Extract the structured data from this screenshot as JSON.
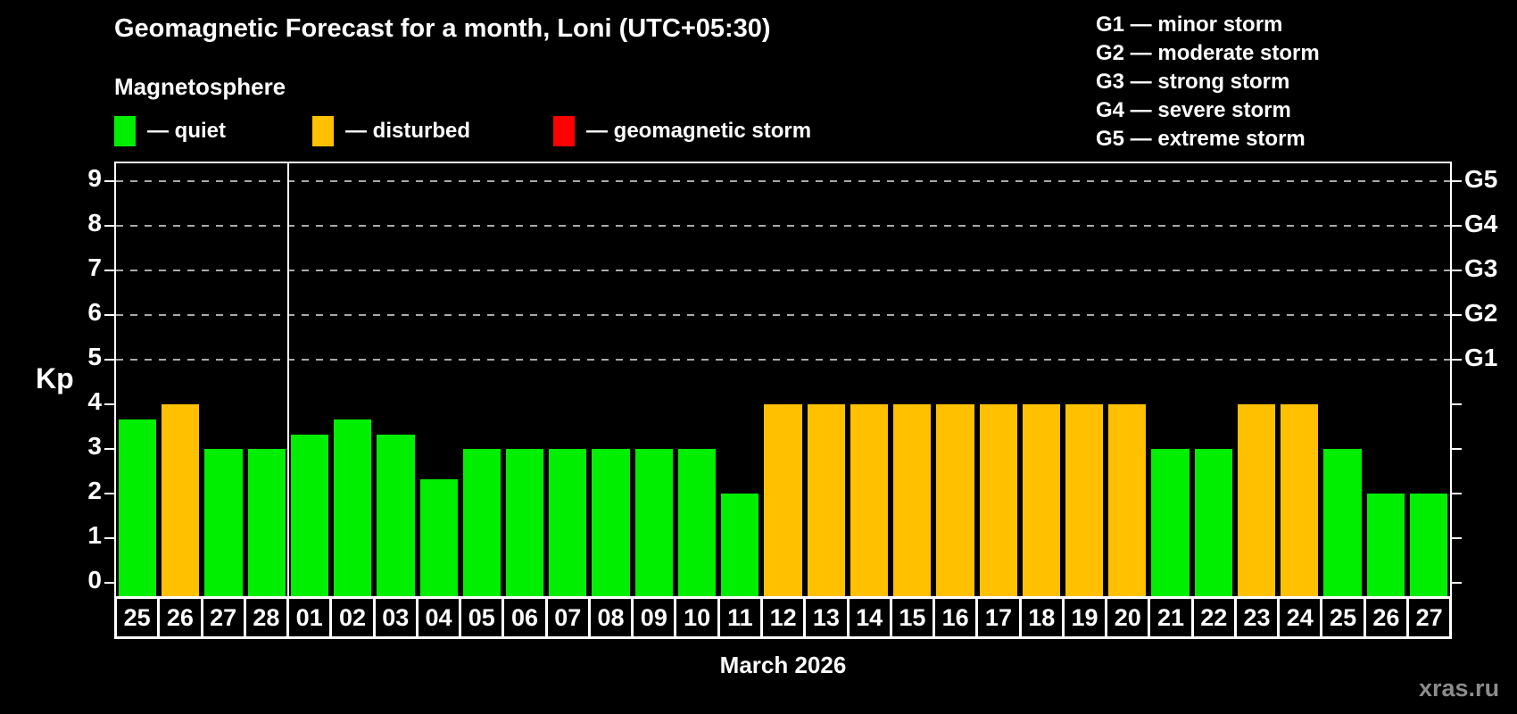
{
  "title": "Geomagnetic Forecast for a month, Loni (UTC+05:30)",
  "subtitle": "Magnetosphere",
  "legend": {
    "items": [
      {
        "label": "— quiet",
        "state": "quiet",
        "color": "#00ee00"
      },
      {
        "label": "— disturbed",
        "state": "disturbed",
        "color": "#ffc000"
      },
      {
        "label": "— geomagnetic storm",
        "state": "storm",
        "color": "#ff0000"
      }
    ]
  },
  "storm_legend": {
    "items": [
      "G1 — minor storm",
      "G2 — moderate storm",
      "G3 — strong storm",
      "G4 — severe storm",
      "G5 — extreme storm"
    ]
  },
  "watermark": "xras.ru",
  "chart_data": {
    "type": "bar",
    "title": "Geomagnetic Forecast for a month, Loni (UTC+05:30)",
    "ylabel": "Kp",
    "xlabel": "March 2026",
    "categories": [
      "25",
      "26",
      "27",
      "28",
      "01",
      "02",
      "03",
      "04",
      "05",
      "06",
      "07",
      "08",
      "09",
      "10",
      "11",
      "12",
      "13",
      "14",
      "15",
      "16",
      "17",
      "18",
      "19",
      "20",
      "21",
      "22",
      "23",
      "24",
      "25",
      "26",
      "27"
    ],
    "values": [
      3.67,
      4,
      3,
      3,
      3.33,
      3.67,
      3.33,
      2.33,
      3,
      3,
      3,
      3,
      3,
      3,
      2,
      4,
      4,
      4,
      4,
      4,
      4,
      4,
      4,
      4,
      3,
      3,
      4,
      4,
      3,
      2,
      2
    ],
    "states": [
      "quiet",
      "disturbed",
      "quiet",
      "quiet",
      "quiet",
      "quiet",
      "quiet",
      "quiet",
      "quiet",
      "quiet",
      "quiet",
      "quiet",
      "quiet",
      "quiet",
      "quiet",
      "disturbed",
      "disturbed",
      "disturbed",
      "disturbed",
      "disturbed",
      "disturbed",
      "disturbed",
      "disturbed",
      "disturbed",
      "quiet",
      "quiet",
      "disturbed",
      "disturbed",
      "quiet",
      "quiet",
      "quiet"
    ],
    "state_colors": {
      "quiet": "#00ee00",
      "disturbed": "#ffc000",
      "storm": "#ff0000"
    },
    "ylim": [
      0,
      9
    ],
    "yticks": [
      0,
      1,
      2,
      3,
      4,
      5,
      6,
      7,
      8,
      9
    ],
    "gridlines_at": [
      5,
      6,
      7,
      8,
      9
    ],
    "grid_color": "#aaaaaa",
    "right_axis_labels": [
      {
        "label": "G1",
        "kp": 5
      },
      {
        "label": "G2",
        "kp": 6
      },
      {
        "label": "G3",
        "kp": 7
      },
      {
        "label": "G4",
        "kp": 8
      },
      {
        "label": "G5",
        "kp": 9
      }
    ],
    "month_boundary_after_index": 3,
    "legend_position": "top-left",
    "grid": "dashed-horizontal-on-G-levels-only"
  }
}
